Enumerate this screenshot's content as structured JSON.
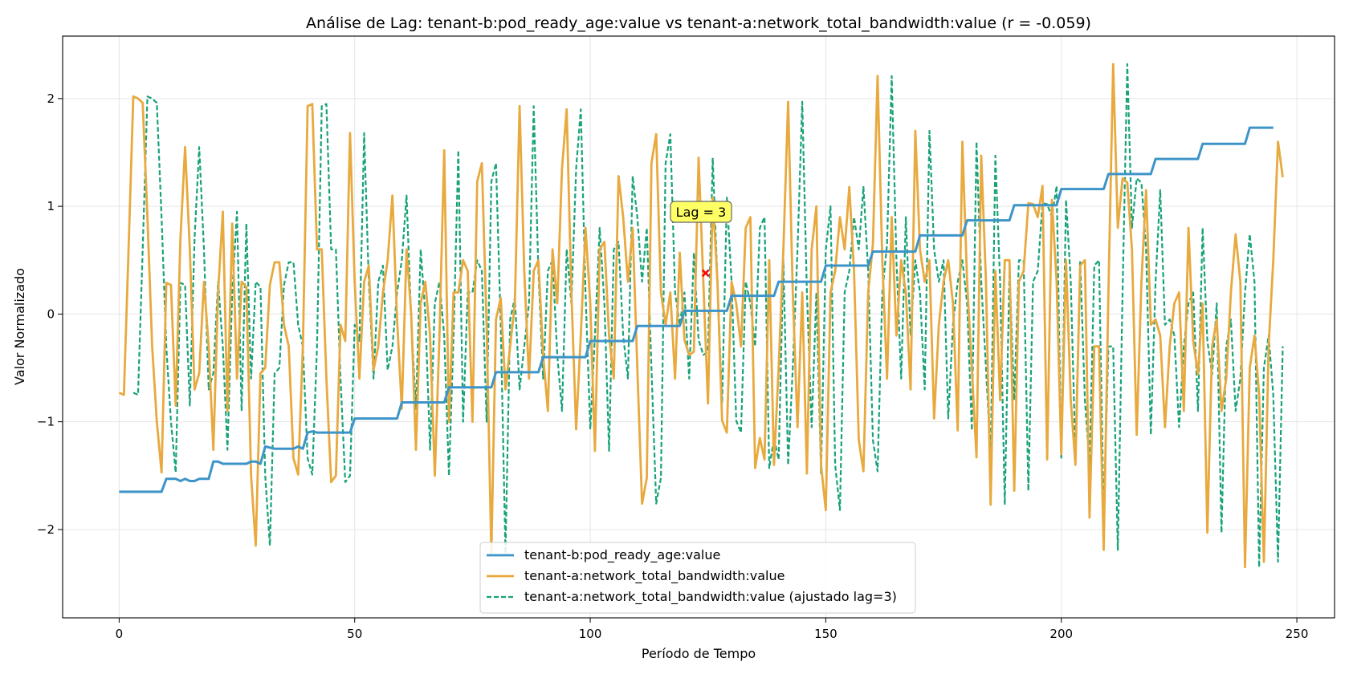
{
  "chart_data": {
    "type": "line",
    "title": "Análise de Lag: tenant-b:pod_ready_age:value vs tenant-a:network_total_bandwidth:value (r = -0.059)",
    "xlabel": "Período de Tempo",
    "ylabel": "Valor Normalizado",
    "xlim": [
      -12,
      258
    ],
    "ylim": [
      -2.82,
      2.58
    ],
    "xticks": [
      0,
      50,
      100,
      150,
      200,
      250
    ],
    "yticks": [
      -2,
      -1,
      0,
      1,
      2
    ],
    "ytick_labels": [
      "−2",
      "−1",
      "0",
      "1",
      "2"
    ],
    "grid": true,
    "legend_position": "lower-center",
    "annotation": {
      "text": "Lag = 3",
      "x": 125,
      "y": 0.92
    },
    "marker": {
      "x": 124.5,
      "y": 0.38,
      "color": "#ff0000"
    },
    "series": [
      {
        "name": "tenant-b:pod_ready_age:value",
        "color": "#3d94c8",
        "style": "solid",
        "points": [
          [
            0,
            -1.65
          ],
          [
            9,
            -1.65
          ],
          [
            10,
            -1.53
          ],
          [
            12,
            -1.53
          ],
          [
            13,
            -1.55
          ],
          [
            14,
            -1.53
          ],
          [
            15,
            -1.55
          ],
          [
            16,
            -1.55
          ],
          [
            17,
            -1.53
          ],
          [
            19,
            -1.53
          ],
          [
            20,
            -1.37
          ],
          [
            21,
            -1.37
          ],
          [
            22,
            -1.39
          ],
          [
            27,
            -1.39
          ],
          [
            28,
            -1.37
          ],
          [
            29,
            -1.37
          ],
          [
            30,
            -1.39
          ],
          [
            31,
            -1.23
          ],
          [
            33,
            -1.25
          ],
          [
            37,
            -1.25
          ],
          [
            38,
            -1.23
          ],
          [
            39,
            -1.25
          ],
          [
            40,
            -1.1
          ],
          [
            41,
            -1.09
          ],
          [
            42,
            -1.1
          ],
          [
            49,
            -1.1
          ],
          [
            50,
            -0.97
          ],
          [
            59,
            -0.97
          ],
          [
            60,
            -0.82
          ],
          [
            69,
            -0.82
          ],
          [
            70,
            -0.68
          ],
          [
            79,
            -0.68
          ],
          [
            80,
            -0.54
          ],
          [
            89,
            -0.54
          ],
          [
            90,
            -0.4
          ],
          [
            99,
            -0.4
          ],
          [
            100,
            -0.25
          ],
          [
            109,
            -0.25
          ],
          [
            110,
            -0.11
          ],
          [
            119,
            -0.11
          ],
          [
            120,
            0.03
          ],
          [
            129,
            0.03
          ],
          [
            130,
            0.17
          ],
          [
            139,
            0.17
          ],
          [
            140,
            0.3
          ],
          [
            149,
            0.3
          ],
          [
            150,
            0.45
          ],
          [
            159,
            0.45
          ],
          [
            160,
            0.58
          ],
          [
            169,
            0.58
          ],
          [
            170,
            0.73
          ],
          [
            179,
            0.73
          ],
          [
            180,
            0.87
          ],
          [
            189,
            0.87
          ],
          [
            190,
            1.01
          ],
          [
            199,
            1.01
          ],
          [
            200,
            1.16
          ],
          [
            209,
            1.16
          ],
          [
            210,
            1.3
          ],
          [
            219,
            1.3
          ],
          [
            220,
            1.44
          ],
          [
            229,
            1.44
          ],
          [
            230,
            1.58
          ],
          [
            239,
            1.58
          ],
          [
            240,
            1.73
          ],
          [
            245,
            1.73
          ]
        ]
      },
      {
        "name": "tenant-a:network_total_bandwidth:value",
        "color": "#e8a93e",
        "style": "solid",
        "values": [
          -0.73,
          -0.75,
          0.6,
          2.02,
          2.0,
          1.96,
          0.9,
          -0.3,
          -1.0,
          -1.47,
          0.29,
          0.27,
          -0.85,
          0.7,
          1.55,
          0.6,
          -0.7,
          -0.55,
          0.3,
          -0.3,
          -1.26,
          0.2,
          0.95,
          -0.9,
          0.84,
          -0.6,
          0.3,
          0.25,
          -1.5,
          -2.15,
          -0.55,
          -0.5,
          0.27,
          0.48,
          0.48,
          -0.1,
          -0.3,
          -1.34,
          -1.49,
          -0.3,
          1.93,
          1.95,
          0.6,
          0.6,
          -0.6,
          -1.56,
          -1.5,
          -0.1,
          -0.25,
          1.68,
          0.3,
          -0.6,
          0.3,
          0.45,
          -0.52,
          -0.3,
          0.2,
          0.5,
          1.1,
          -0.05,
          -0.88,
          0.6,
          0.0,
          -1.26,
          0.1,
          0.3,
          -0.2,
          -1.5,
          -0.2,
          1.52,
          -1.0,
          0.2,
          0.2,
          0.5,
          0.4,
          -1.0,
          1.23,
          1.4,
          -0.1,
          -2.22,
          -0.05,
          0.15,
          -0.7,
          -0.3,
          0.1,
          1.93,
          0.4,
          -0.6,
          0.4,
          0.5,
          -0.38,
          -0.9,
          0.6,
          0.1,
          1.35,
          1.9,
          0.2,
          -1.07,
          -0.2,
          0.8,
          0.1,
          -1.27,
          0.6,
          0.67,
          -0.2,
          -0.6,
          1.28,
          0.9,
          0.3,
          0.8,
          -0.5,
          -1.76,
          -1.52,
          1.4,
          1.67,
          0.2,
          -0.1,
          0.2,
          -0.6,
          0.57,
          -0.24,
          -0.38,
          -0.35,
          1.45,
          0.3,
          -0.83,
          1.08,
          0.3,
          -0.99,
          -1.1,
          0.3,
          0.1,
          -0.3,
          0.8,
          0.9,
          -1.43,
          -1.15,
          -1.35,
          0.5,
          -1.4,
          -0.5,
          0.6,
          1.97,
          0.2,
          -1.05,
          0.2,
          -1.48,
          0.6,
          1.0,
          -1.4,
          -1.82,
          0.2,
          0.4,
          0.9,
          0.6,
          1.18,
          0.4,
          -1.17,
          -1.46,
          0.2,
          0.65,
          2.21,
          0.5,
          -0.6,
          0.9,
          -0.2,
          0.5,
          0.2,
          -0.7,
          1.7,
          0.6,
          0.3,
          0.5,
          -0.97,
          -0.1,
          0.3,
          0.5,
          0.1,
          -1.08,
          1.6,
          0.3,
          -0.5,
          -1.33,
          1.47,
          0.3,
          -1.77,
          0.4,
          -0.8,
          0.5,
          0.5,
          -1.64,
          0.3,
          0.4,
          1.03,
          1.02,
          0.9,
          1.19,
          -1.35,
          1.06,
          0.3,
          -1.3,
          0.5,
          -0.8,
          -1.4,
          0.45,
          0.5,
          -1.89,
          -0.3,
          -0.3,
          -2.19,
          0.2,
          2.32,
          0.8,
          1.26,
          1.22,
          0.6,
          -1.12,
          0.3,
          1.15,
          -0.1,
          -0.05,
          -0.2,
          -1.05,
          -0.3,
          0.1,
          0.2,
          -0.9,
          0.8,
          -0.25,
          -0.56,
          0.1,
          -2.03,
          -0.3,
          -0.05,
          -0.9,
          -0.6,
          0.2,
          0.74,
          0.3,
          -2.35,
          -0.5,
          -0.2,
          -0.75,
          -2.3,
          -0.3,
          0.5,
          1.6,
          1.27
        ]
      },
      {
        "name": "tenant-a:network_total_bandwidth:value (ajustado lag=3)",
        "color": "#17a27a",
        "style": "dashed",
        "lag": 3
      }
    ]
  }
}
